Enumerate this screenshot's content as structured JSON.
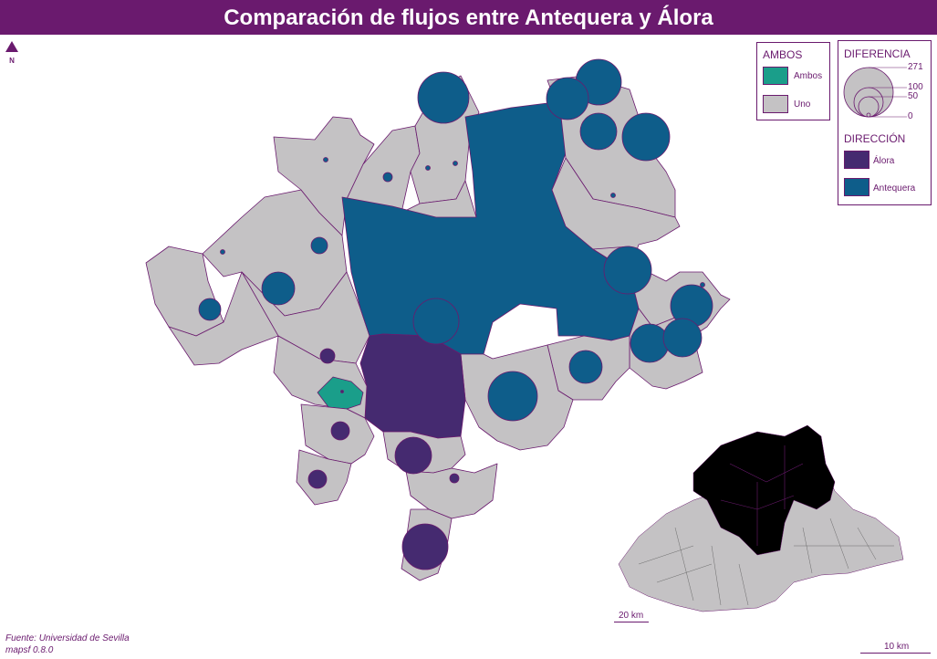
{
  "title": "Comparación de flujos entre Antequera y Álora",
  "north_label": "N",
  "colors": {
    "title_bg": "#6a1a6e",
    "antequera": "#0e5d8a",
    "alora": "#452a70",
    "ambos": "#1a9e8a",
    "uno": "#c4c2c4",
    "border": "#6a1a6e"
  },
  "legend_ambos": {
    "title": "AMBOS",
    "items": [
      {
        "label": "Ambos",
        "color": "#1a9e8a"
      },
      {
        "label": "Uno",
        "color": "#c4c2c4"
      }
    ]
  },
  "legend_diferencia": {
    "title": "DIFERENCIA",
    "values": [
      "271",
      "100",
      "50",
      "0"
    ]
  },
  "legend_direccion": {
    "title": "DIRECCIÓN",
    "items": [
      {
        "label": "Álora",
        "color": "#452a70"
      },
      {
        "label": "Antequera",
        "color": "#0e5d8a"
      }
    ]
  },
  "source": {
    "line1": "Fuente: Universidad de Sevilla",
    "line2": "mapsf 0.8.0"
  },
  "scale_inset": "20 km",
  "scale_main": "10 km"
}
